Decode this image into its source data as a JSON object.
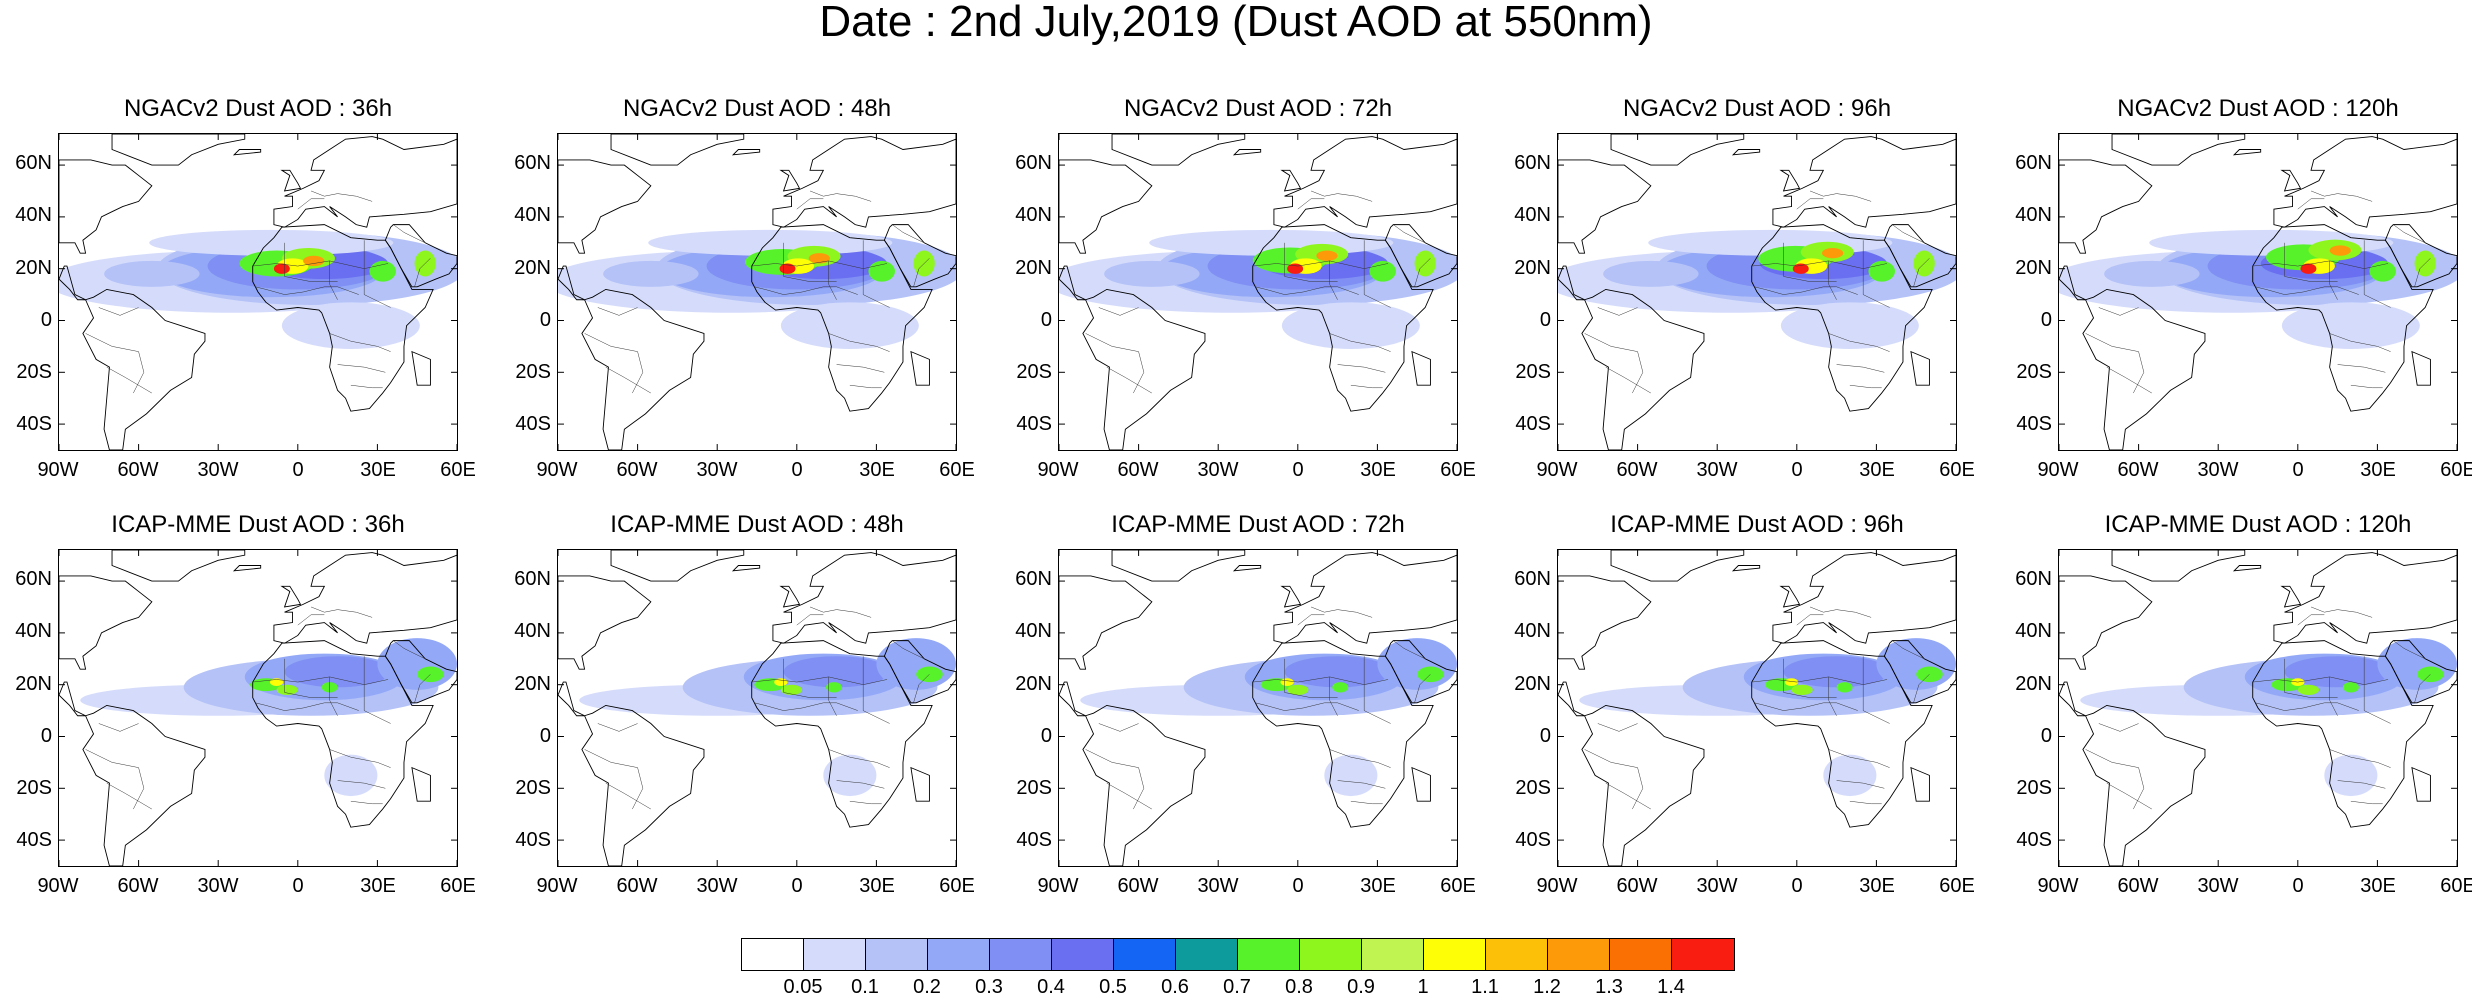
{
  "title": "Date : 2nd July,2019 (Dust AOD at 550nm)",
  "lat_ticks": [
    "60N",
    "40N",
    "20N",
    "0",
    "20S",
    "40S"
  ],
  "lon_ticks": [
    "90W",
    "60W",
    "30W",
    "0",
    "30E",
    "60E"
  ],
  "panels": [
    {
      "title": "NGACv2 Dust AOD : 36h",
      "model": "NGACv2",
      "lead": "36h"
    },
    {
      "title": "NGACv2 Dust AOD : 48h",
      "model": "NGACv2",
      "lead": "48h"
    },
    {
      "title": "NGACv2 Dust AOD : 72h",
      "model": "NGACv2",
      "lead": "72h"
    },
    {
      "title": "NGACv2 Dust AOD : 96h",
      "model": "NGACv2",
      "lead": "96h"
    },
    {
      "title": "NGACv2 Dust AOD : 120h",
      "model": "NGACv2",
      "lead": "120h"
    },
    {
      "title": "ICAP-MME Dust AOD : 36h",
      "model": "ICAP-MME",
      "lead": "36h"
    },
    {
      "title": "ICAP-MME Dust AOD : 48h",
      "model": "ICAP-MME",
      "lead": "48h"
    },
    {
      "title": "ICAP-MME Dust AOD : 72h",
      "model": "ICAP-MME",
      "lead": "72h"
    },
    {
      "title": "ICAP-MME Dust AOD : 96h",
      "model": "ICAP-MME",
      "lead": "96h"
    },
    {
      "title": "ICAP-MME Dust AOD : 120h",
      "model": "ICAP-MME",
      "lead": "120h"
    }
  ],
  "colorbar": {
    "labels": [
      "0.05",
      "0.1",
      "0.2",
      "0.3",
      "0.4",
      "0.5",
      "0.6",
      "0.7",
      "0.8",
      "0.9",
      "1",
      "1.1",
      "1.2",
      "1.3",
      "1.4"
    ],
    "colors": [
      "#ffffff",
      "#d5dcfb",
      "#b4c2f8",
      "#93a8f7",
      "#7f8ff3",
      "#6a6ef0",
      "#1565f4",
      "#0e9b9b",
      "#58f22b",
      "#8ef51d",
      "#c0f450",
      "#fefe07",
      "#fdc008",
      "#fd9a0a",
      "#fb7002",
      "#f81c11"
    ]
  }
}
